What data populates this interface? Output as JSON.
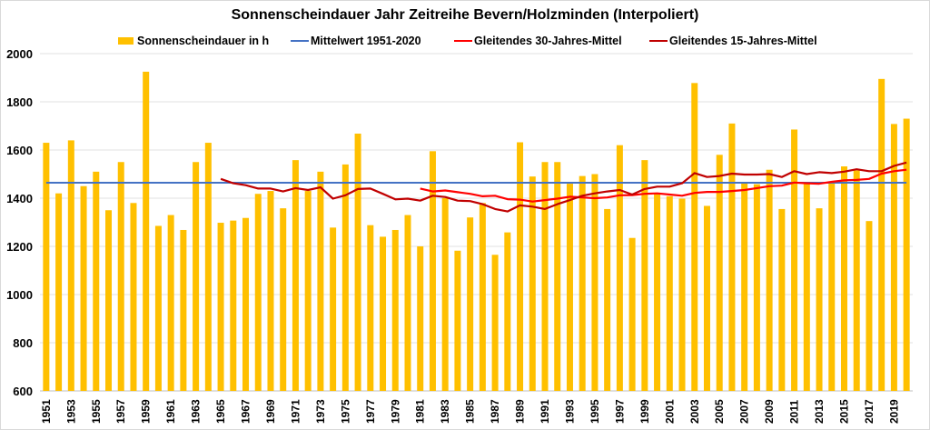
{
  "chart_data": {
    "type": "bar",
    "title": "Sonnenscheindauer Jahr Zeitreihe Bevern/Holzminden (Interpoliert)",
    "xlabel": "",
    "ylabel": "",
    "ylim": [
      600,
      2000
    ],
    "yticks": [
      600,
      800,
      1000,
      1200,
      1400,
      1600,
      1800,
      2000
    ],
    "xtick_labels": [
      "1951",
      "1953",
      "1955",
      "1957",
      "1959",
      "1961",
      "1963",
      "1965",
      "1967",
      "1969",
      "1971",
      "1973",
      "1975",
      "1977",
      "1979",
      "1981",
      "1983",
      "1985",
      "1987",
      "1989",
      "1991",
      "1993",
      "1995",
      "1997",
      "1999",
      "2001",
      "2003",
      "2005",
      "2007",
      "2009",
      "2011",
      "2013",
      "2015",
      "2017",
      "2019"
    ],
    "grid": true,
    "legend_position": "top",
    "x": [
      1951,
      1952,
      1953,
      1954,
      1955,
      1956,
      1957,
      1958,
      1959,
      1960,
      1961,
      1962,
      1963,
      1964,
      1965,
      1966,
      1967,
      1968,
      1969,
      1970,
      1971,
      1972,
      1973,
      1974,
      1975,
      1976,
      1977,
      1978,
      1979,
      1980,
      1981,
      1982,
      1983,
      1984,
      1985,
      1986,
      1987,
      1988,
      1989,
      1990,
      1991,
      1992,
      1993,
      1994,
      1995,
      1996,
      1997,
      1998,
      1999,
      2000,
      2001,
      2002,
      2003,
      2004,
      2005,
      2006,
      2007,
      2008,
      2009,
      2010,
      2011,
      2012,
      2013,
      2014,
      2015,
      2016,
      2017,
      2018,
      2019,
      2020
    ],
    "series": [
      {
        "name": "Sonnenscheindauer in h",
        "type": "bar",
        "color": "#ffc000",
        "values": [
          1630,
          1420,
          1640,
          1450,
          1510,
          1350,
          1550,
          1380,
          1925,
          1285,
          1330,
          1268,
          1550,
          1630,
          1298,
          1307,
          1318,
          1418,
          1430,
          1358,
          1558,
          1430,
          1510,
          1278,
          1540,
          1668,
          1288,
          1240,
          1268,
          1330,
          1200,
          1595,
          1400,
          1182,
          1320,
          1380,
          1165,
          1258,
          1632,
          1490,
          1550,
          1550,
          1460,
          1492,
          1500,
          1355,
          1620,
          1235,
          1558,
          1418,
          1408,
          1398,
          1878,
          1368,
          1580,
          1710,
          1465,
          1458,
          1518,
          1355,
          1685,
          1460,
          1358,
          1462,
          1532,
          1515,
          1305,
          1895,
          1708,
          1730
        ]
      },
      {
        "name": "Mittelwert 1951-2020",
        "type": "line",
        "color": "#4472c4",
        "values": [
          1464,
          1464,
          1464,
          1464,
          1464,
          1464,
          1464,
          1464,
          1464,
          1464,
          1464,
          1464,
          1464,
          1464,
          1464,
          1464,
          1464,
          1464,
          1464,
          1464,
          1464,
          1464,
          1464,
          1464,
          1464,
          1464,
          1464,
          1464,
          1464,
          1464,
          1464,
          1464,
          1464,
          1464,
          1464,
          1464,
          1464,
          1464,
          1464,
          1464,
          1464,
          1464,
          1464,
          1464,
          1464,
          1464,
          1464,
          1464,
          1464,
          1464,
          1464,
          1464,
          1464,
          1464,
          1464,
          1464,
          1464,
          1464,
          1464,
          1464,
          1464,
          1464,
          1464,
          1464,
          1464,
          1464,
          1464,
          1464,
          1464,
          1464
        ]
      },
      {
        "name": "Gleitendes 30-Jahres-Mittel",
        "type": "line",
        "color": "#ff0000",
        "values": [
          null,
          null,
          null,
          null,
          null,
          null,
          null,
          null,
          null,
          null,
          null,
          null,
          null,
          null,
          null,
          null,
          null,
          null,
          null,
          null,
          null,
          null,
          null,
          null,
          null,
          null,
          null,
          null,
          null,
          null,
          1440,
          1428,
          1432,
          1425,
          1418,
          1408,
          1410,
          1396,
          1394,
          1386,
          1392,
          1398,
          1406,
          1403,
          1400,
          1403,
          1412,
          1413,
          1418,
          1420,
          1415,
          1410,
          1422,
          1426,
          1426,
          1430,
          1434,
          1442,
          1450,
          1452,
          1465,
          1462,
          1460,
          1468,
          1474,
          1476,
          1480,
          1502,
          1512,
          1518
        ]
      },
      {
        "name": "Gleitendes 15-Jahres-Mittel",
        "type": "line",
        "color": "#c00000",
        "values": [
          null,
          null,
          null,
          null,
          null,
          null,
          null,
          null,
          null,
          null,
          null,
          null,
          null,
          null,
          1480,
          1462,
          1454,
          1440,
          1440,
          1428,
          1442,
          1434,
          1445,
          1398,
          1412,
          1438,
          1440,
          1418,
          1395,
          1398,
          1390,
          1410,
          1405,
          1390,
          1388,
          1375,
          1355,
          1345,
          1370,
          1365,
          1355,
          1375,
          1392,
          1410,
          1420,
          1428,
          1434,
          1415,
          1438,
          1448,
          1448,
          1462,
          1504,
          1488,
          1492,
          1502,
          1498,
          1498,
          1500,
          1488,
          1512,
          1500,
          1508,
          1504,
          1510,
          1520,
          1512,
          1512,
          1534,
          1548
        ]
      }
    ]
  }
}
